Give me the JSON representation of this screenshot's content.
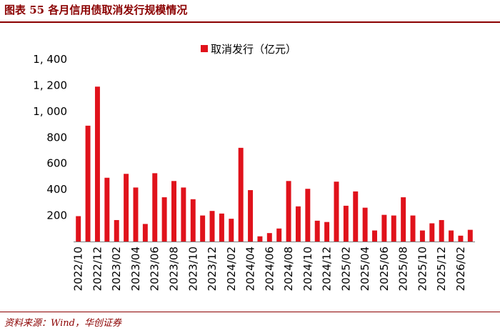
{
  "figure": {
    "title": "图表 55   各月信用债取消发行规模情况",
    "source": "资料来源：Wind，华创证券"
  },
  "colors": {
    "bar": "#e0121b",
    "rule": "#8b0000"
  },
  "chart_data": {
    "type": "bar",
    "title": "",
    "xlabel": "",
    "ylabel": "",
    "ylim": [
      0,
      1400
    ],
    "yticks": [
      200,
      400,
      600,
      800,
      1000,
      1200,
      1400
    ],
    "ytick_labels": [
      "200",
      "400",
      "600",
      "800",
      "1, 000",
      "1, 200",
      "1, 400"
    ],
    "grid": false,
    "legend_position": "top-center",
    "categories": [
      "2022/10",
      "2022/11",
      "2022/12",
      "2023/01",
      "2023/02",
      "2023/03",
      "2023/04",
      "2023/05",
      "2023/06",
      "2023/07",
      "2023/08",
      "2023/09",
      "2023/10",
      "2023/11",
      "2023/12",
      "2024/01",
      "2024/02",
      "2024/03",
      "2024/04",
      "2024/05",
      "2024/06",
      "2024/07",
      "2024/08",
      "2024/09",
      "2024/10",
      "2024/11",
      "2024/12",
      "2025/01",
      "2025/02",
      "2025/03",
      "2025/04",
      "2025/05",
      "2025/06",
      "2025/07",
      "2025/08",
      "2025/09",
      "2025/10",
      "2025/11",
      "2025/12",
      "2026/01",
      "2026/02",
      "2026/03"
    ],
    "xtick_labels": [
      "2022/10",
      "2022/12",
      "2023/02",
      "2023/04",
      "2023/06",
      "2023/08",
      "2023/10",
      "2023/12",
      "2024/02",
      "2024/04",
      "2024/06",
      "2024/08",
      "2024/10",
      "2024/12",
      "2025/02",
      "2025/04",
      "2025/06",
      "2025/08",
      "2025/10",
      "2025/12",
      "2026/02"
    ],
    "series": [
      {
        "name": "取消发行（亿元）",
        "values": [
          195,
          890,
          1190,
          490,
          165,
          520,
          415,
          135,
          525,
          340,
          465,
          415,
          325,
          200,
          235,
          215,
          175,
          720,
          395,
          40,
          65,
          100,
          465,
          270,
          405,
          160,
          150,
          460,
          275,
          385,
          260,
          85,
          205,
          200,
          340,
          200,
          85,
          140,
          165,
          85,
          45,
          90
        ]
      }
    ]
  }
}
